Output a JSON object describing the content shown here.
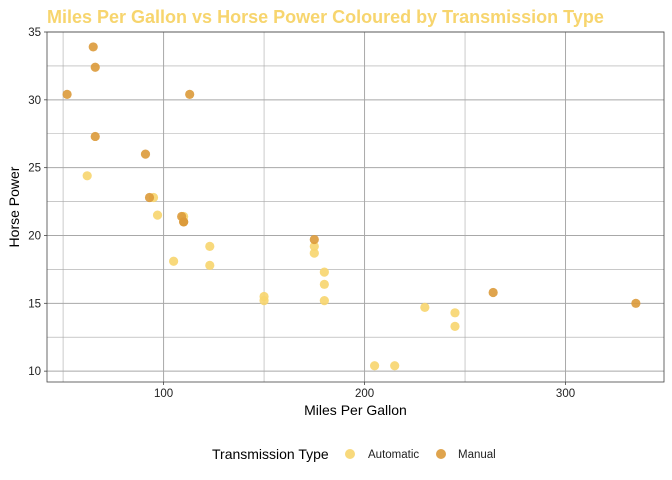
{
  "chart_data": {
    "type": "scatter",
    "title": "Miles Per Gallon vs Horse Power Coloured by Transmission Type",
    "xlabel": "Miles Per Gallon",
    "ylabel": "Horse Power",
    "xlim": [
      42,
      349
    ],
    "ylim": [
      9.2,
      35
    ],
    "x_ticks": [
      100,
      200,
      300
    ],
    "y_ticks": [
      10,
      15,
      20,
      25,
      30,
      35
    ],
    "grid": true,
    "legend": {
      "title": "Transmission Type",
      "placement": "bottom"
    },
    "series": [
      {
        "name": "Automatic",
        "color": "#f7d56e",
        "points": [
          {
            "x": 110,
            "y": 21.4
          },
          {
            "x": 175,
            "y": 18.7
          },
          {
            "x": 105,
            "y": 18.1
          },
          {
            "x": 245,
            "y": 14.3
          },
          {
            "x": 62,
            "y": 24.4
          },
          {
            "x": 95,
            "y": 22.8
          },
          {
            "x": 123,
            "y": 19.2
          },
          {
            "x": 123,
            "y": 17.8
          },
          {
            "x": 180,
            "y": 16.4
          },
          {
            "x": 180,
            "y": 17.3
          },
          {
            "x": 180,
            "y": 15.2
          },
          {
            "x": 205,
            "y": 10.4
          },
          {
            "x": 215,
            "y": 10.4
          },
          {
            "x": 230,
            "y": 14.7
          },
          {
            "x": 97,
            "y": 21.5
          },
          {
            "x": 150,
            "y": 15.5
          },
          {
            "x": 150,
            "y": 15.2
          },
          {
            "x": 245,
            "y": 13.3
          },
          {
            "x": 175,
            "y": 19.2
          }
        ]
      },
      {
        "name": "Manual",
        "color": "#dc9a3a",
        "points": [
          {
            "x": 110,
            "y": 21.0
          },
          {
            "x": 110,
            "y": 21.0
          },
          {
            "x": 93,
            "y": 22.8
          },
          {
            "x": 66,
            "y": 32.4
          },
          {
            "x": 52,
            "y": 30.4
          },
          {
            "x": 65,
            "y": 33.9
          },
          {
            "x": 66,
            "y": 27.3
          },
          {
            "x": 91,
            "y": 26.0
          },
          {
            "x": 113,
            "y": 30.4
          },
          {
            "x": 264,
            "y": 15.8
          },
          {
            "x": 175,
            "y": 19.7
          },
          {
            "x": 335,
            "y": 15.0
          },
          {
            "x": 109,
            "y": 21.4
          }
        ]
      }
    ]
  },
  "colors": {
    "title": "#f7d56e",
    "grid": "#a8a8a8",
    "axis": "#444444"
  }
}
